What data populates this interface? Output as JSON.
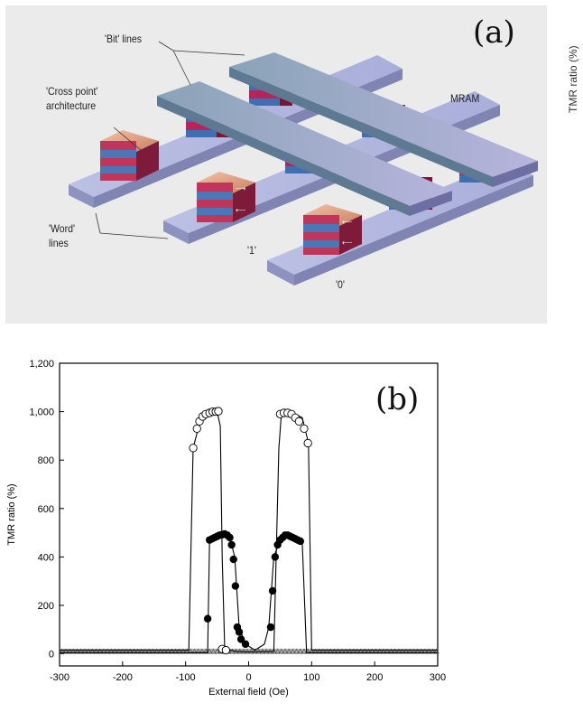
{
  "panel_a": {
    "tag": "(a)",
    "bit_lines": "'Bit' lines",
    "cross_point_line1": "'Cross point'",
    "cross_point_line2": "architecture",
    "word_line1": "'Word'",
    "word_line2": "lines",
    "mram": "MRAM",
    "state_one": "'1'",
    "state_zero": "'0'",
    "side_label": "TMR ratio (%)"
  },
  "panel_b": {
    "tag": "(b)"
  },
  "chart_data": {
    "type": "scatter",
    "xlabel": "External field (Oe)",
    "ylabel": "TMR ratio (%)",
    "xlim": [
      -300,
      300
    ],
    "ylim": [
      -50,
      1200
    ],
    "xticks": [
      -300,
      -200,
      -100,
      0,
      100,
      200,
      300
    ],
    "yticks": [
      0,
      200,
      400,
      600,
      800,
      1000,
      1200
    ],
    "ytick_labels": [
      "0",
      "200",
      "400",
      "600",
      "800",
      "1,000",
      "1,200"
    ],
    "series": [
      {
        "marker": "open-circle",
        "line": [
          [
            -300,
            15
          ],
          [
            -95,
            15
          ],
          [
            -88,
            850
          ],
          [
            -80,
            930
          ],
          [
            -75,
            965
          ],
          [
            -68,
            990
          ],
          [
            -58,
            1000
          ],
          [
            -50,
            1000
          ],
          [
            -45,
            940
          ],
          [
            -42,
            400
          ],
          [
            -38,
            20
          ],
          [
            -20,
            10
          ],
          [
            0,
            8
          ],
          [
            40,
            10
          ],
          [
            48,
            850
          ],
          [
            52,
            990
          ],
          [
            70,
            995
          ],
          [
            85,
            975
          ],
          [
            95,
            870
          ],
          [
            100,
            15
          ],
          [
            300,
            15
          ]
        ],
        "points": [
          [
            -88,
            850
          ],
          [
            -82,
            930
          ],
          [
            -78,
            960
          ],
          [
            -73,
            980
          ],
          [
            -68,
            990
          ],
          [
            -62,
            995
          ],
          [
            -57,
            1000
          ],
          [
            -52,
            1000
          ],
          [
            -48,
            1002
          ],
          [
            -42,
            20
          ],
          [
            -36,
            15
          ],
          [
            50,
            990
          ],
          [
            56,
            995
          ],
          [
            62,
            995
          ],
          [
            68,
            990
          ],
          [
            74,
            975
          ],
          [
            80,
            960
          ],
          [
            88,
            930
          ],
          [
            94,
            870
          ]
        ]
      },
      {
        "marker": "filled-circle",
        "line": [
          [
            -300,
            5
          ],
          [
            -65,
            5
          ],
          [
            -62,
            470
          ],
          [
            -52,
            485
          ],
          [
            -40,
            495
          ],
          [
            -30,
            480
          ],
          [
            -22,
            400
          ],
          [
            -15,
            110
          ],
          [
            -5,
            40
          ],
          [
            10,
            15
          ],
          [
            25,
            40
          ],
          [
            32,
            110
          ],
          [
            40,
            400
          ],
          [
            50,
            470
          ],
          [
            60,
            490
          ],
          [
            70,
            490
          ],
          [
            78,
            475
          ],
          [
            85,
            460
          ],
          [
            92,
            5
          ],
          [
            300,
            5
          ]
        ],
        "points": [
          [
            -65,
            145
          ],
          [
            -62,
            470
          ],
          [
            -58,
            475
          ],
          [
            -54,
            480
          ],
          [
            -50,
            485
          ],
          [
            -46,
            490
          ],
          [
            -42,
            492
          ],
          [
            -38,
            495
          ],
          [
            -34,
            490
          ],
          [
            -30,
            480
          ],
          [
            -27,
            450
          ],
          [
            -24,
            390
          ],
          [
            -21,
            280
          ],
          [
            -18,
            110
          ],
          [
            -15,
            90
          ],
          [
            -12,
            60
          ],
          [
            -5,
            40
          ],
          [
            35,
            110
          ],
          [
            38,
            260
          ],
          [
            42,
            400
          ],
          [
            46,
            450
          ],
          [
            50,
            470
          ],
          [
            54,
            480
          ],
          [
            58,
            490
          ],
          [
            62,
            490
          ],
          [
            66,
            485
          ],
          [
            70,
            480
          ],
          [
            74,
            475
          ],
          [
            78,
            470
          ],
          [
            82,
            465
          ]
        ]
      },
      {
        "marker": "open-triangle",
        "line": [
          [
            -300,
            10
          ],
          [
            300,
            10
          ]
        ],
        "points": []
      }
    ]
  }
}
